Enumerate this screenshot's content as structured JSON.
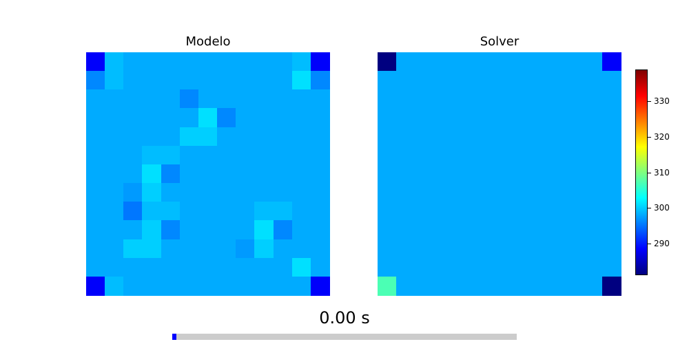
{
  "chart_data": [
    {
      "type": "heatmap",
      "title": "Modelo",
      "rows": 13,
      "cols": 13,
      "values": [
        [
          288,
          299,
          298,
          298,
          298,
          298,
          298,
          298,
          298,
          298,
          298,
          299,
          288
        ],
        [
          296,
          299,
          298,
          298,
          298,
          298,
          298,
          298,
          298,
          298,
          298,
          301,
          296
        ],
        [
          298,
          298,
          298,
          298,
          298,
          296,
          298,
          298,
          298,
          298,
          298,
          298,
          298
        ],
        [
          298,
          298,
          298,
          298,
          298,
          298,
          301,
          296,
          298,
          298,
          298,
          298,
          298
        ],
        [
          298,
          298,
          298,
          298,
          298,
          300,
          300,
          298,
          298,
          298,
          298,
          298,
          298
        ],
        [
          298,
          298,
          298,
          299,
          299,
          298,
          298,
          298,
          298,
          298,
          298,
          298,
          298
        ],
        [
          298,
          298,
          298,
          301,
          296,
          298,
          298,
          298,
          298,
          298,
          298,
          298,
          298
        ],
        [
          298,
          298,
          297,
          300,
          298,
          298,
          298,
          298,
          298,
          298,
          298,
          298,
          298
        ],
        [
          298,
          298,
          295,
          299,
          299,
          298,
          298,
          298,
          298,
          299,
          299,
          298,
          298
        ],
        [
          298,
          298,
          298,
          300,
          296,
          298,
          298,
          298,
          298,
          301,
          296,
          298,
          298
        ],
        [
          298,
          298,
          300,
          300,
          298,
          298,
          298,
          298,
          297,
          300,
          298,
          298,
          298
        ],
        [
          298,
          298,
          298,
          298,
          298,
          298,
          298,
          298,
          298,
          298,
          298,
          301,
          298
        ],
        [
          288,
          299,
          298,
          298,
          298,
          298,
          298,
          298,
          298,
          298,
          298,
          298,
          288
        ]
      ]
    },
    {
      "type": "heatmap",
      "title": "Solver",
      "rows": 13,
      "cols": 13,
      "values": [
        [
          281,
          298,
          298,
          298,
          298,
          298,
          298,
          298,
          298,
          298,
          298,
          298,
          288
        ],
        [
          298,
          298,
          298,
          298,
          298,
          298,
          298,
          298,
          298,
          298,
          298,
          298,
          298
        ],
        [
          298,
          298,
          298,
          298,
          298,
          298,
          298,
          298,
          298,
          298,
          298,
          298,
          298
        ],
        [
          298,
          298,
          298,
          298,
          298,
          298,
          298,
          298,
          298,
          298,
          298,
          298,
          298
        ],
        [
          298,
          298,
          298,
          298,
          298,
          298,
          298,
          298,
          298,
          298,
          298,
          298,
          298
        ],
        [
          298,
          298,
          298,
          298,
          298,
          298,
          298,
          298,
          298,
          298,
          298,
          298,
          298
        ],
        [
          298,
          298,
          298,
          298,
          298,
          298,
          298,
          298,
          298,
          298,
          298,
          298,
          298
        ],
        [
          298,
          298,
          298,
          298,
          298,
          298,
          298,
          298,
          298,
          298,
          298,
          298,
          298
        ],
        [
          298,
          298,
          298,
          298,
          298,
          298,
          298,
          298,
          298,
          298,
          298,
          298,
          298
        ],
        [
          298,
          298,
          298,
          298,
          298,
          298,
          298,
          298,
          298,
          298,
          298,
          298,
          298
        ],
        [
          298,
          298,
          298,
          298,
          298,
          298,
          298,
          298,
          298,
          298,
          298,
          298,
          298
        ],
        [
          298,
          298,
          298,
          298,
          298,
          298,
          298,
          298,
          298,
          298,
          298,
          298,
          298
        ],
        [
          307,
          298,
          298,
          298,
          298,
          298,
          298,
          298,
          298,
          298,
          298,
          298,
          281
        ]
      ]
    }
  ],
  "colorbar": {
    "colormap": "jet",
    "vmin": 281,
    "vmax": 339,
    "ticks": [
      "290",
      "300",
      "310",
      "320",
      "330"
    ]
  },
  "time_label": "0.00 s",
  "progress": 0.012
}
